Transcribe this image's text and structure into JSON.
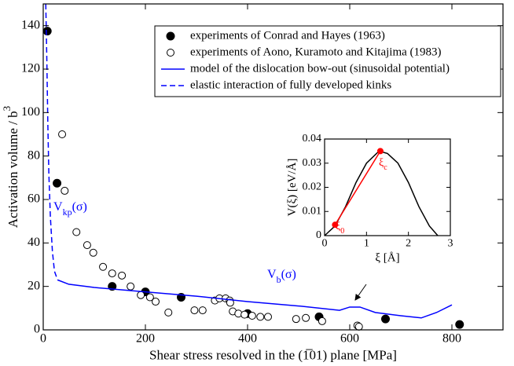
{
  "chart_data": [
    {
      "type": "line",
      "x_label": "Shear stress resolved in the (1̅01) plane [MPa]",
      "y_label": [
        "Activation volume / b",
        "3"
      ],
      "xlim": [
        0,
        900
      ],
      "ylim": [
        0,
        150
      ],
      "xticks": [
        0,
        200,
        400,
        600,
        800
      ],
      "yticks": [
        0,
        20,
        40,
        60,
        80,
        100,
        120,
        140
      ],
      "legend": "upper right",
      "series": [
        {
          "name": "experiments of Conrad and Hayes (1963)",
          "color": "#000000",
          "marker": "filled",
          "x": [
            8,
            27,
            135,
            200,
            270,
            400,
            540,
            670,
            815
          ],
          "values": [
            137.5,
            67.5,
            20,
            17.5,
            15,
            7.5,
            6,
            5,
            2.5
          ]
        },
        {
          "name": "experiments of Aono, Kuramoto and Kitajima (1983)",
          "color": "#000000",
          "marker": "open",
          "x": [
            37,
            42,
            65,
            86,
            98,
            117,
            135,
            154,
            171,
            191,
            209,
            220,
            245,
            296,
            312,
            336,
            345,
            357,
            365,
            366,
            371,
            382,
            394,
            409,
            425,
            440,
            495,
            514,
            546,
            615,
            618
          ],
          "values": [
            90,
            64,
            45,
            39,
            35.5,
            29,
            26,
            25,
            20,
            16,
            15,
            13,
            8,
            9,
            9,
            13.5,
            14.5,
            14.5,
            13.5,
            12.5,
            8.5,
            7.5,
            7,
            6.5,
            6,
            6,
            5,
            5.5,
            4,
            2,
            1.5
          ]
        },
        {
          "name": "model of the dislocation bow-out (sinusoidal potential)",
          "color": "#0000ff",
          "line": "solid",
          "x": [
            28,
            50,
            100,
            200,
            300,
            400,
            500,
            580,
            600,
            620,
            650,
            700,
            740,
            770,
            800
          ],
          "values": [
            23,
            21,
            19.5,
            17.5,
            15.5,
            13,
            11,
            9,
            10.5,
            10.5,
            8,
            6.5,
            5.5,
            8,
            11.5
          ]
        },
        {
          "name": "elastic interaction of fully developed kinks",
          "color": "#0000ff",
          "line": "dashed",
          "x": [
            5,
            7,
            9,
            11,
            14,
            18,
            22,
            28
          ],
          "values": [
            150,
            125,
            95,
            72,
            52,
            36,
            27,
            23
          ]
        }
      ],
      "annotations": [
        [
          "V",
          "kp",
          "(σ)"
        ],
        [
          "V",
          "b",
          "(σ)"
        ]
      ]
    },
    {
      "type": "line",
      "x_label": "ξ [Å]",
      "y_label": "V(ξ) [eV/Å]",
      "xlim": [
        0,
        3
      ],
      "ylim": [
        0,
        0.04
      ],
      "xticks": [
        0,
        1,
        2,
        3
      ],
      "yticks": [
        0,
        0.01,
        0.02,
        0.03,
        0.04
      ],
      "series": [
        {
          "color": "#000000",
          "line": "solid",
          "x": [
            0,
            0.25,
            0.5,
            0.75,
            1,
            1.3,
            1.5,
            1.75,
            2,
            2.25,
            2.5,
            2.7
          ],
          "values": [
            0,
            0.004,
            0.012,
            0.022,
            0.03,
            0.035,
            0.034,
            0.03,
            0.022,
            0.012,
            0.004,
            0
          ]
        },
        {
          "color": "#ff0000",
          "line": "solid",
          "marker": "filled",
          "x": [
            0.25,
            1.33
          ],
          "values": [
            0.0045,
            0.035
          ]
        }
      ],
      "annotations": [
        [
          "ξ",
          "0"
        ],
        [
          "ξ",
          "c"
        ]
      ]
    }
  ]
}
